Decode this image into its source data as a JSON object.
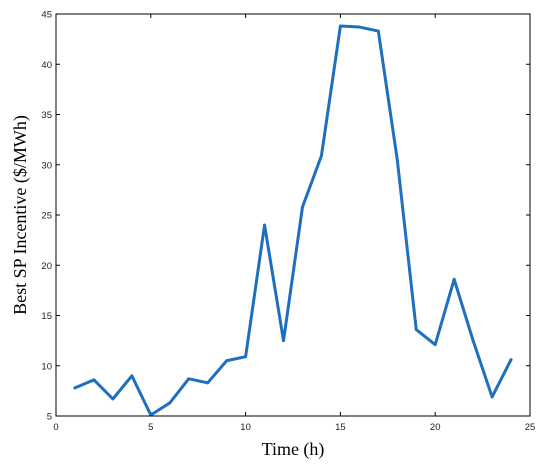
{
  "chart_data": {
    "type": "line",
    "title": "",
    "xlabel": "Time (h)",
    "ylabel": "Best SP Incentive ($/MWh)",
    "xlim": [
      0,
      25
    ],
    "ylim": [
      5,
      45
    ],
    "x_ticks": [
      0,
      5,
      10,
      15,
      20,
      25
    ],
    "y_ticks": [
      5,
      10,
      15,
      20,
      25,
      30,
      35,
      40,
      45
    ],
    "x_tick_labels": [
      "0",
      "5",
      "10",
      "15",
      "20",
      "25"
    ],
    "y_tick_labels": [
      "5",
      "10",
      "15",
      "20",
      "25",
      "30",
      "35",
      "40",
      "45"
    ],
    "grid": false,
    "legend": "none",
    "series": [
      {
        "color": "#1f6fbf",
        "x": [
          1,
          2,
          3,
          4,
          5,
          6,
          7,
          8,
          9,
          10,
          11,
          12,
          13,
          14,
          15,
          16,
          17,
          18,
          19,
          20,
          21,
          22,
          23,
          24
        ],
        "y": [
          7.8,
          8.6,
          6.7,
          9.0,
          5.1,
          6.3,
          8.7,
          8.3,
          10.5,
          10.9,
          24.0,
          12.5,
          25.8,
          30.9,
          43.8,
          43.7,
          43.3,
          30.5,
          13.6,
          12.1,
          18.6,
          12.5,
          6.9,
          10.6
        ]
      }
    ]
  }
}
